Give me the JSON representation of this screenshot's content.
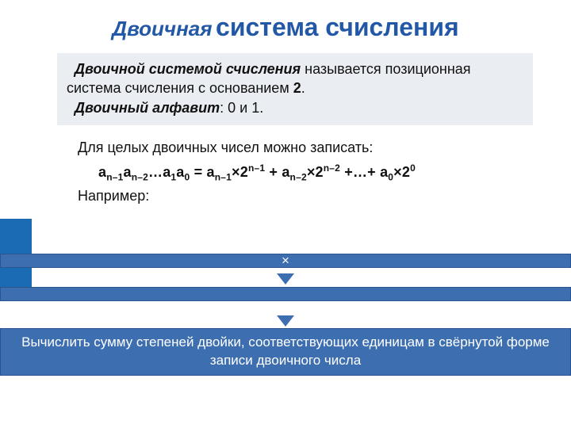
{
  "colors": {
    "title": "#2258a6",
    "defbox_bg": "#eaeef2",
    "bar_bg": "#3d6fb0",
    "bar_border": "#2a5590",
    "side_accent": "#1a6bb3",
    "text": "#111111",
    "white": "#ffffff"
  },
  "title": {
    "word1": "Двоичная",
    "word2": "система счисления"
  },
  "definition": {
    "t1": "Двоичной системой счисления",
    "t2": " называется позиционная система счисления с основанием ",
    "t3": "2",
    "t4": ".",
    "line2_label": "Двоичный алфавит",
    "line2_rest": ": 0 и 1."
  },
  "body": {
    "line1": "Для целых двоичных чисел можно записать:",
    "example_label": "Например:"
  },
  "bars": {
    "b1_text": "×",
    "b2_text": "",
    "b3_text": "Вычислить сумму степеней двойки, соответствующих единицам в свёрнутой форме записи двоичного числа"
  }
}
